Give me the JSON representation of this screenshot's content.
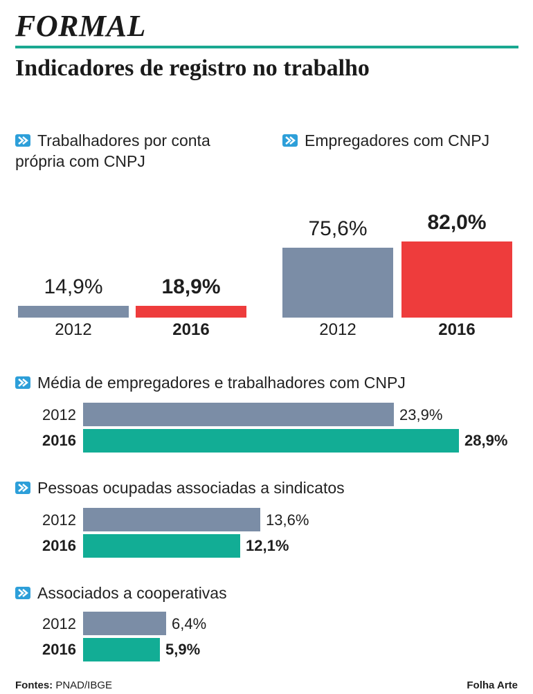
{
  "kicker": "FORMAL",
  "title": "Indicadores de registro no trabalho",
  "colors": {
    "accent": "#1aa891",
    "gray": "#7b8da6",
    "red": "#ee3c3c",
    "green": "#12ad95",
    "marker": "#2d9fd9"
  },
  "icon": "chevron-right-icon",
  "chart_data": [
    {
      "type": "bar",
      "title": "Trabalhadores por conta própria com CNPJ",
      "title_lines": [
        "Trabalhadores por conta",
        "própria com CNPJ"
      ],
      "categories": [
        "2012",
        "2016"
      ],
      "values": [
        14.9,
        18.9
      ],
      "value_labels": [
        "14,9%",
        "18,9%"
      ],
      "ylim": [
        0,
        100
      ]
    },
    {
      "type": "bar",
      "title": "Empregadores com CNPJ",
      "categories": [
        "2012",
        "2016"
      ],
      "values": [
        75.6,
        82.0
      ],
      "value_labels": [
        "75,6%",
        "82,0%"
      ],
      "ylim": [
        0,
        100
      ]
    },
    {
      "type": "bar",
      "orientation": "horizontal",
      "title": "Média de empregadores e trabalhadores com CNPJ",
      "categories": [
        "2012",
        "2016"
      ],
      "values": [
        23.9,
        28.9
      ],
      "value_labels": [
        "23,9%",
        "28,9%"
      ],
      "xlim": [
        0,
        28.9
      ]
    },
    {
      "type": "bar",
      "orientation": "horizontal",
      "title": "Pessoas ocupadas associadas a sindicatos",
      "categories": [
        "2012",
        "2016"
      ],
      "values": [
        13.6,
        12.1
      ],
      "value_labels": [
        "13,6%",
        "12,1%"
      ],
      "xlim": [
        0,
        28.9
      ]
    },
    {
      "type": "bar",
      "orientation": "horizontal",
      "title": "Associados a cooperativas",
      "categories": [
        "2012",
        "2016"
      ],
      "values": [
        6.4,
        5.9
      ],
      "value_labels": [
        "6,4%",
        "5,9%"
      ],
      "xlim": [
        0,
        28.9
      ]
    }
  ],
  "footer": {
    "source_label": "Fontes:",
    "source": "PNAD/IBGE",
    "credit": "Folha Arte"
  }
}
